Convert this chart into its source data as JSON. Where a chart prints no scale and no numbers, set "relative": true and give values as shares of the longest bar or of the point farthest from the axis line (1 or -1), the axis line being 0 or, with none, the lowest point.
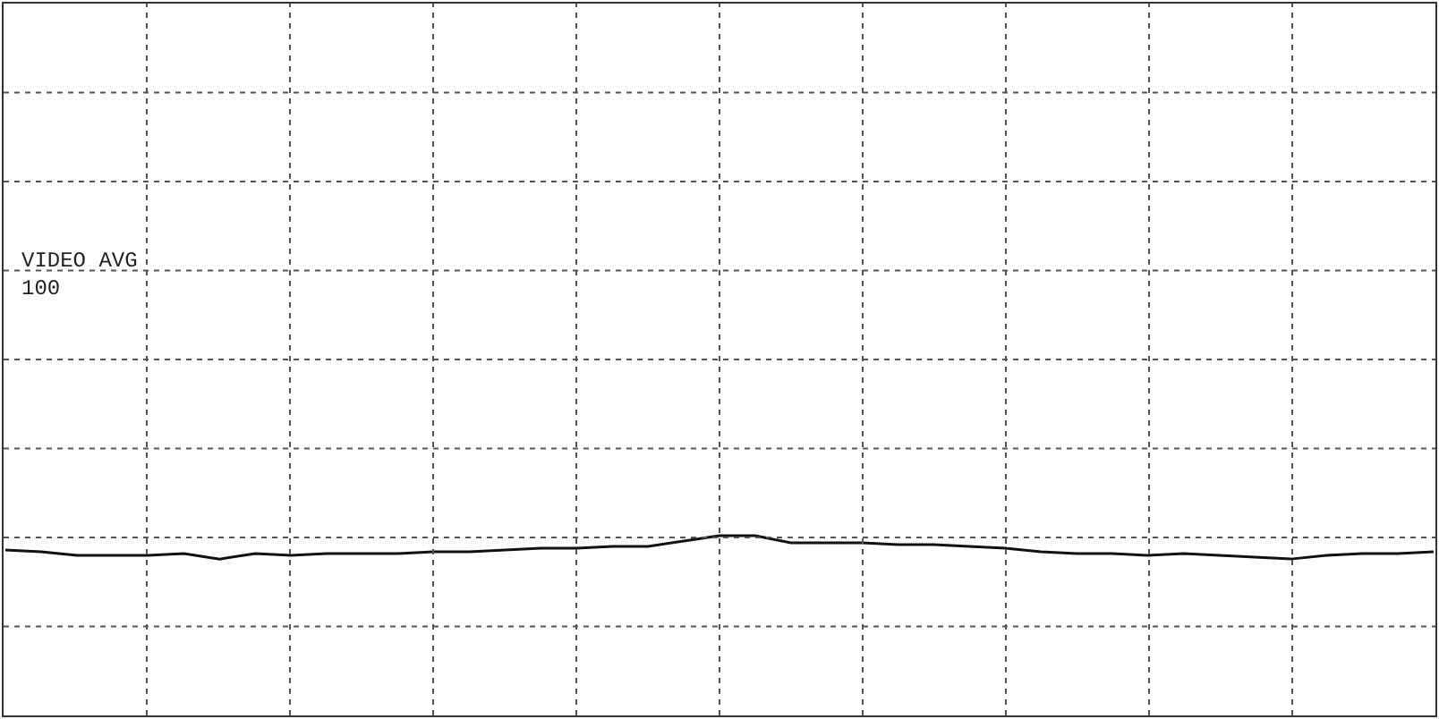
{
  "chart_data": {
    "type": "line",
    "relative": true,
    "grid": true,
    "marker": "none",
    "line_style": "solid",
    "categories": [
      null,
      null,
      null,
      null,
      null,
      null,
      null,
      null,
      null,
      null,
      null,
      null,
      null,
      null,
      null,
      null,
      null,
      null,
      null,
      null,
      null,
      null,
      null,
      null,
      null,
      null,
      null,
      null,
      null,
      null,
      null,
      null,
      null,
      null,
      null,
      null,
      null,
      null,
      null,
      null,
      null
    ],
    "series": [
      {
        "color": "#111111",
        "values": [
          0.92,
          0.91,
          0.89,
          0.89,
          0.89,
          0.9,
          0.87,
          0.9,
          0.89,
          0.9,
          0.9,
          0.9,
          0.91,
          0.91,
          0.92,
          0.93,
          0.93,
          0.94,
          0.94,
          0.97,
          1,
          1,
          0.96,
          0.96,
          0.96,
          0.95,
          0.95,
          0.94,
          0.93,
          0.91,
          0.9,
          0.9,
          0.89,
          0.9,
          0.89,
          0.88,
          0.87,
          0.89,
          0.9,
          0.9,
          0.91
        ]
      }
    ],
    "annotations": [
      "VIDEO AVG",
      "100"
    ]
  }
}
